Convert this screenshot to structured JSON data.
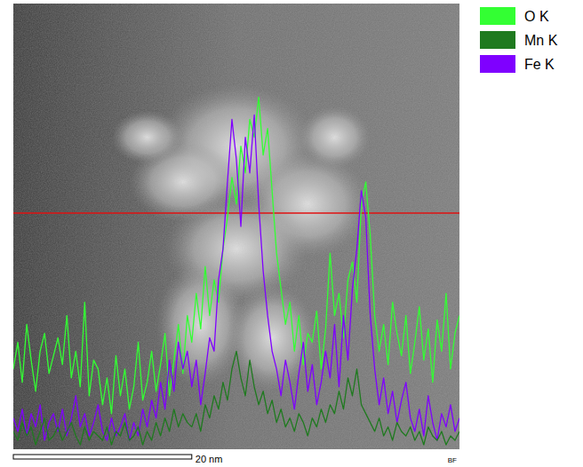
{
  "chart_data": {
    "type": "line",
    "tick_labels": false,
    "legend": "right",
    "xlim": [
      0,
      50
    ],
    "ylim": [
      0,
      100
    ],
    "x": [
      0,
      0.5,
      1,
      1.5,
      2,
      2.5,
      3,
      3.5,
      4,
      4.5,
      5,
      5.5,
      6,
      6.5,
      7,
      7.5,
      8,
      8.5,
      9,
      9.5,
      10,
      10.5,
      11,
      11.5,
      12,
      12.5,
      13,
      13.5,
      14,
      14.5,
      15,
      15.5,
      16,
      16.5,
      17,
      17.5,
      18,
      18.5,
      19,
      19.5,
      20,
      20.5,
      21,
      21.5,
      22,
      22.5,
      23,
      23.5,
      24,
      24.5,
      25,
      25.5,
      26,
      26.5,
      27,
      27.5,
      28,
      28.5,
      29,
      29.5,
      30,
      30.5,
      31,
      31.5,
      32,
      32.5,
      33,
      33.5,
      34,
      34.5,
      35,
      35.5,
      36,
      36.5,
      37,
      37.5,
      38,
      38.5,
      39,
      39.5,
      40,
      40.5,
      41,
      41.5,
      42,
      42.5,
      43,
      43.5,
      44,
      44.5,
      45,
      45.5,
      46,
      46.5,
      47,
      47.5,
      48,
      48.5,
      49,
      49.5,
      50
    ],
    "series": [
      {
        "name": "O K",
        "color": "#33ff33",
        "values": [
          18,
          24,
          15,
          28,
          20,
          13,
          22,
          26,
          17,
          21,
          25,
          19,
          30,
          16,
          22,
          14,
          33,
          12,
          20,
          18,
          10,
          16,
          8,
          21,
          12,
          18,
          9,
          14,
          24,
          11,
          15,
          22,
          13,
          19,
          26,
          12,
          20,
          28,
          17,
          30,
          24,
          35,
          27,
          41,
          30,
          38,
          33,
          45,
          52,
          61,
          55,
          68,
          62,
          74,
          70,
          79,
          66,
          72,
          58,
          44,
          36,
          28,
          33,
          22,
          30,
          19,
          26,
          24,
          31,
          18,
          27,
          44,
          30,
          35,
          25,
          38,
          42,
          33,
          55,
          60,
          48,
          30,
          22,
          28,
          19,
          33,
          26,
          21,
          30,
          17,
          24,
          32,
          20,
          27,
          15,
          29,
          22,
          35,
          18,
          26,
          30
        ]
      },
      {
        "name": "Mn K",
        "color": "#1f7a1f",
        "values": [
          4,
          2,
          6,
          3,
          5,
          1,
          4,
          7,
          2,
          3,
          5,
          2,
          4,
          6,
          3,
          1,
          5,
          2,
          4,
          3,
          2,
          5,
          1,
          4,
          3,
          6,
          2,
          3,
          5,
          1,
          4,
          2,
          6,
          3,
          7,
          4,
          9,
          5,
          8,
          6,
          5,
          8,
          4,
          10,
          7,
          12,
          9,
          15,
          11,
          18,
          22,
          16,
          12,
          20,
          14,
          10,
          13,
          8,
          11,
          6,
          9,
          5,
          7,
          4,
          8,
          6,
          3,
          7,
          5,
          9,
          6,
          10,
          8,
          13,
          9,
          16,
          12,
          18,
          10,
          8,
          6,
          4,
          7,
          3,
          5,
          2,
          6,
          4,
          3,
          5,
          2,
          4,
          1,
          5,
          3,
          2,
          4,
          1,
          3,
          2,
          4
        ]
      },
      {
        "name": "Fe K",
        "color": "#7f00ff",
        "values": [
          7,
          4,
          9,
          3,
          8,
          5,
          10,
          2,
          6,
          8,
          4,
          9,
          3,
          7,
          12,
          5,
          8,
          3,
          6,
          10,
          4,
          2,
          7,
          3,
          5,
          8,
          2,
          6,
          3,
          9,
          5,
          11,
          7,
          15,
          9,
          20,
          13,
          24,
          18,
          22,
          14,
          20,
          10,
          17,
          25,
          22,
          38,
          45,
          60,
          74,
          65,
          50,
          70,
          62,
          75,
          55,
          40,
          30,
          22,
          18,
          12,
          20,
          15,
          9,
          17,
          24,
          13,
          19,
          10,
          15,
          22,
          16,
          28,
          14,
          30,
          20,
          36,
          45,
          58,
          52,
          30,
          18,
          10,
          16,
          8,
          13,
          6,
          11,
          15,
          7,
          4,
          9,
          3,
          12,
          6,
          2,
          8,
          5,
          10,
          4,
          7
        ]
      }
    ],
    "scale_bar": {
      "length": 20,
      "label": "20 nm"
    },
    "annotations": [
      "BF"
    ]
  }
}
